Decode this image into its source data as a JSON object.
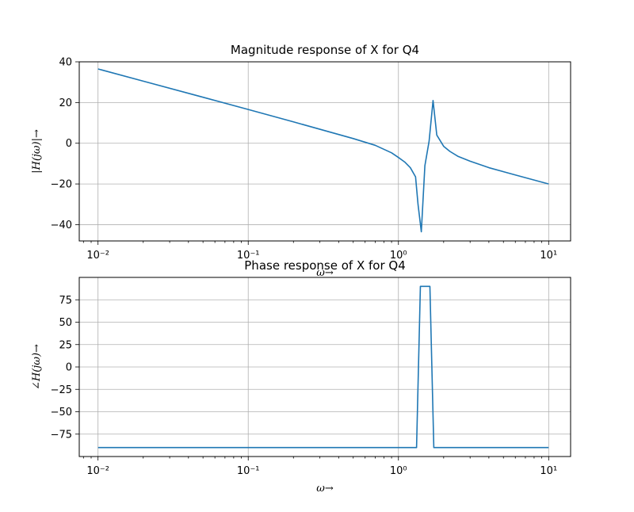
{
  "chart_data": [
    {
      "type": "line",
      "title": "Magnitude response of X for Q4",
      "xlabel": "ω→",
      "ylabel": "|H(jω)|→",
      "xscale": "log",
      "xlim": [
        0.0075,
        14
      ],
      "ylim": [
        -48,
        40
      ],
      "grid": true,
      "xticks": [
        0.01,
        0.1,
        1,
        10
      ],
      "xtick_labels": [
        "10⁻²",
        "10⁻¹",
        "10⁰",
        "10¹"
      ],
      "yticks": [
        40,
        20,
        0,
        -20,
        -40
      ],
      "ytick_labels": [
        "40",
        "20",
        "0",
        "−20",
        "−40"
      ],
      "color": "#1f77b4",
      "series": [
        {
          "x": [
            0.01,
            0.02,
            0.05,
            0.1,
            0.2,
            0.5,
            0.7,
            0.9,
            1.0,
            1.1,
            1.2,
            1.3,
            1.35,
            1.42,
            1.5,
            1.6,
            1.7,
            1.8,
            2.0,
            2.2,
            2.5,
            3.0,
            4.0,
            6.0,
            10.0
          ],
          "y": [
            36.5,
            30.5,
            22.6,
            16.6,
            10.5,
            2.3,
            -1.0,
            -4.7,
            -7.0,
            -9.2,
            -12.0,
            -16.5,
            -30.0,
            -43.5,
            -11.0,
            1.0,
            21.0,
            4.0,
            -1.5,
            -4.0,
            -6.5,
            -8.8,
            -12.0,
            -15.6,
            -20.0
          ]
        }
      ]
    },
    {
      "type": "line",
      "title": "Phase response of X for Q4",
      "xlabel": "ω→",
      "ylabel": "∠H(jω)→",
      "xscale": "log",
      "xlim": [
        0.0075,
        14
      ],
      "ylim": [
        -100,
        100
      ],
      "grid": true,
      "xticks": [
        0.01,
        0.1,
        1,
        10
      ],
      "xtick_labels": [
        "10⁻²",
        "10⁻¹",
        "10⁰",
        "10¹"
      ],
      "yticks": [
        75,
        50,
        25,
        0,
        -25,
        -50,
        -75
      ],
      "ytick_labels": [
        "75",
        "50",
        "25",
        "0",
        "−25",
        "−50",
        "−75"
      ],
      "color": "#1f77b4",
      "series": [
        {
          "x": [
            0.01,
            1.32,
            1.4,
            1.62,
            1.72,
            10.0
          ],
          "y": [
            -90,
            -90,
            90,
            90,
            -90,
            -90
          ]
        }
      ]
    }
  ]
}
